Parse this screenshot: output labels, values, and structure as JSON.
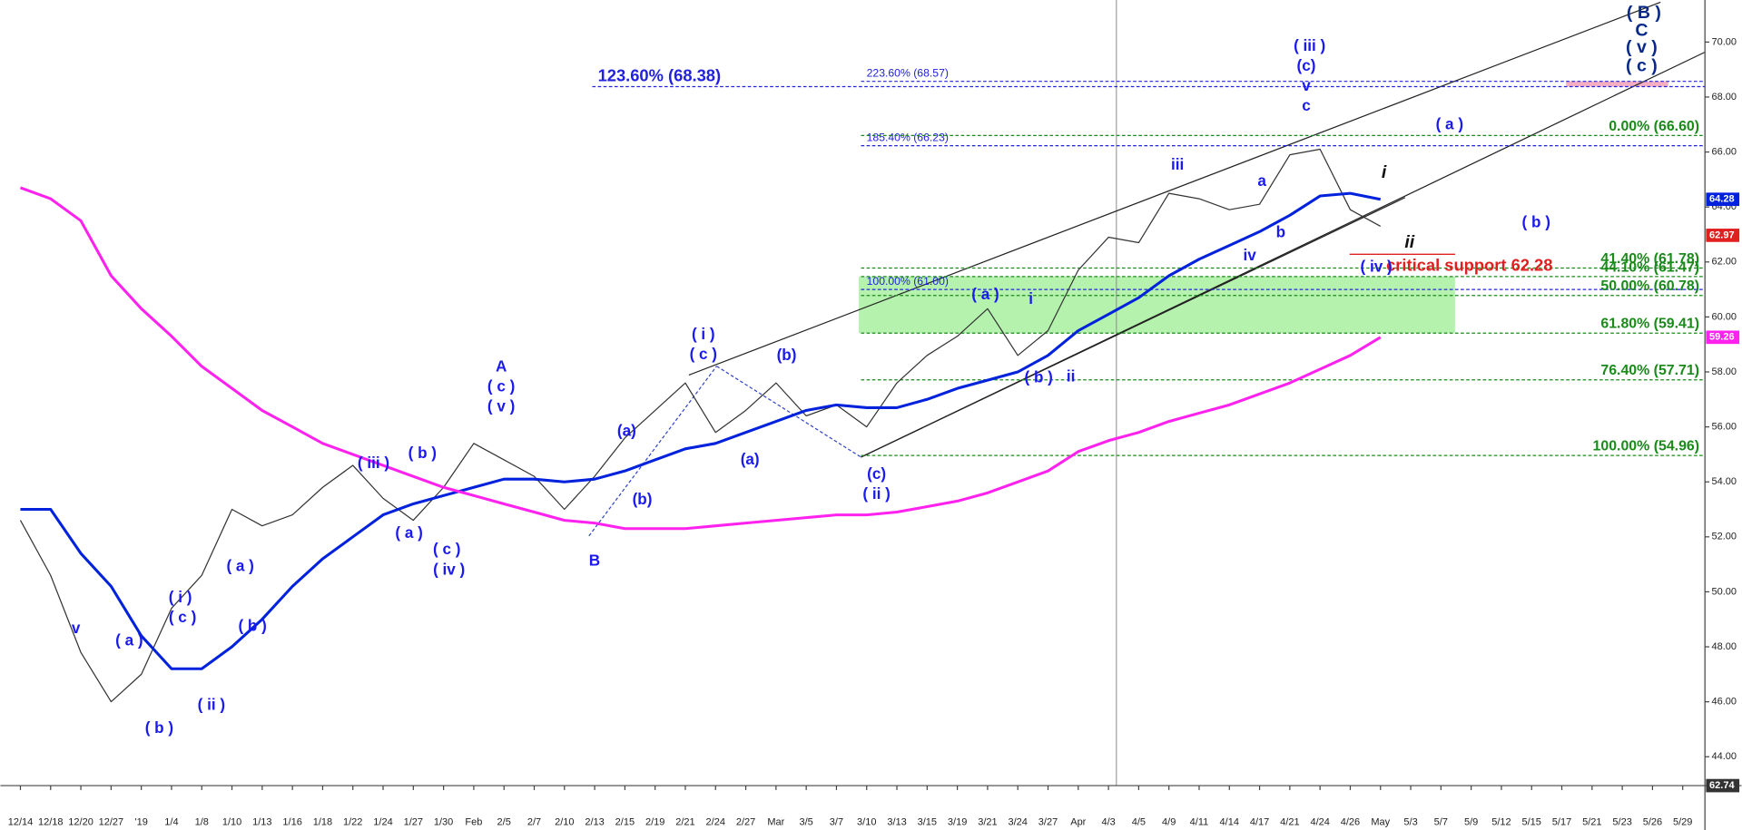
{
  "chart_data": {
    "type": "line",
    "categories": [
      "12/14",
      "12/18",
      "12/20",
      "12/27",
      "'19",
      "1/4",
      "1/8",
      "1/10",
      "1/13",
      "1/16",
      "1/18",
      "1/22",
      "1/24",
      "1/27",
      "1/30",
      "Feb",
      "2/5",
      "2/7",
      "2/10",
      "2/13",
      "2/15",
      "2/19",
      "2/21",
      "2/24",
      "2/27",
      "Mar",
      "3/5",
      "3/7",
      "3/10",
      "3/13",
      "3/15",
      "3/19",
      "3/21",
      "3/24",
      "3/27",
      "Apr",
      "4/3",
      "4/5",
      "4/9",
      "4/11",
      "4/14",
      "4/17",
      "4/21",
      "4/24",
      "4/26",
      "May",
      "5/3",
      "5/7",
      "5/9",
      "5/12",
      "5/15",
      "5/17",
      "5/21",
      "5/23",
      "5/26",
      "5/29"
    ],
    "series": [
      {
        "color": "#333333",
        "values": [
          52.6,
          50.6,
          47.8,
          46.0,
          47.0,
          49.4,
          50.6,
          53.0,
          52.4,
          52.8,
          53.8,
          54.6,
          53.4,
          52.6,
          53.8,
          55.4,
          54.8,
          54.2,
          53.0,
          54.2,
          55.6,
          56.6,
          57.6,
          55.8,
          56.6,
          57.6,
          56.4,
          56.8,
          56.0,
          57.6,
          58.6,
          59.3,
          60.3,
          58.6,
          59.5,
          61.7,
          62.9,
          62.7,
          64.5,
          64.3,
          63.9,
          64.1,
          65.9,
          66.1,
          63.9,
          63.3,
          null,
          null,
          null,
          null,
          null,
          null,
          null,
          null,
          null,
          null
        ]
      },
      {
        "color": "#0022dd",
        "values": [
          53.0,
          53.0,
          51.4,
          50.2,
          48.4,
          47.2,
          47.2,
          48.0,
          49.0,
          50.2,
          51.2,
          52.0,
          52.8,
          53.2,
          53.5,
          53.8,
          54.1,
          54.1,
          54.0,
          54.1,
          54.4,
          54.8,
          55.2,
          55.4,
          55.8,
          56.2,
          56.6,
          56.8,
          56.7,
          56.7,
          57.0,
          57.4,
          57.7,
          58.0,
          58.6,
          59.5,
          60.1,
          60.7,
          61.5,
          62.1,
          62.6,
          63.1,
          63.7,
          64.4,
          64.5,
          64.28,
          null,
          null,
          null,
          null,
          null,
          null,
          null,
          null,
          null,
          null
        ]
      },
      {
        "color": "#ff22ee",
        "values": [
          64.7,
          64.3,
          63.5,
          61.5,
          60.3,
          59.3,
          58.2,
          57.4,
          56.6,
          56.0,
          55.4,
          55.0,
          54.6,
          54.2,
          53.8,
          53.5,
          53.2,
          52.9,
          52.6,
          52.5,
          52.3,
          52.3,
          52.3,
          52.4,
          52.5,
          52.6,
          52.7,
          52.8,
          52.8,
          52.9,
          53.1,
          53.3,
          53.6,
          54.0,
          54.4,
          55.1,
          55.5,
          55.8,
          56.2,
          56.5,
          56.8,
          57.2,
          57.6,
          58.1,
          58.6,
          59.26,
          null,
          null,
          null,
          null,
          null,
          null,
          null,
          null,
          null,
          null
        ]
      }
    ],
    "ylim": [
      42.95,
      71.53
    ],
    "yticks": [
      {
        "value": 44,
        "label": "44.00"
      },
      {
        "value": 46,
        "label": "46.00"
      },
      {
        "value": 48,
        "label": "48.00"
      },
      {
        "value": 50,
        "label": "50.00"
      },
      {
        "value": 52,
        "label": "52.00"
      },
      {
        "value": 54,
        "label": "54.00"
      },
      {
        "value": 56,
        "label": "56.00"
      },
      {
        "value": 58,
        "label": "58.00"
      },
      {
        "value": 60,
        "label": "60.00"
      },
      {
        "value": 62,
        "label": "62.00"
      },
      {
        "value": 64,
        "label": "64.00"
      },
      {
        "value": 66,
        "label": "66.00"
      },
      {
        "value": 68,
        "label": "68.00"
      },
      {
        "value": 70,
        "label": "70.00"
      }
    ],
    "levels": [
      {
        "label": "123.60% (68.38)",
        "value": 68.38,
        "color": "#2222dd"
      },
      {
        "label": "223.60% (68.57)",
        "value": 68.57,
        "color": "#2222dd"
      },
      {
        "label": "185.40% (66.23)",
        "value": 66.23,
        "color": "#2222dd"
      },
      {
        "label": "100.00% (61.00)",
        "value": 61.0,
        "color": "#2222dd"
      },
      {
        "label": "0.00% (66.60)",
        "value": 66.6,
        "color": "#1a8a1a"
      },
      {
        "label": "41.40% (61.78)",
        "value": 61.78,
        "color": "#1a8a1a"
      },
      {
        "label": "44.10% (61.47)",
        "value": 61.47,
        "color": "#1a8a1a"
      },
      {
        "label": "50.00% (60.78)",
        "value": 60.78,
        "color": "#1a8a1a"
      },
      {
        "label": "61.80% (59.41)",
        "value": 59.41,
        "color": "#1a8a1a"
      },
      {
        "label": "76.40% (57.71)",
        "value": 57.71,
        "color": "#1a8a1a"
      },
      {
        "label": "100.00% (54.96)",
        "value": 54.96,
        "color": "#1a8a1a"
      }
    ],
    "zones": [
      {
        "low": 59.41,
        "high": 61.47,
        "color": "#a8f0a0"
      },
      {
        "low": 68.38,
        "high": 68.57,
        "color": "#f4a0b8"
      }
    ],
    "support": {
      "label": "critical support 62.28",
      "value": 62.28,
      "color": "#e02020"
    },
    "price_tags": [
      {
        "value": 64.28,
        "color": "#0022dd"
      },
      {
        "value": 62.97,
        "color": "#e02020"
      },
      {
        "value": 59.26,
        "color": "#ff22ee"
      }
    ],
    "cursor_value": 62.74,
    "wave_labels": [
      "v",
      "( a )",
      "( b )",
      "( i )",
      "( c )",
      "( ii )",
      "( a )",
      "( b )",
      "( iii )",
      "( a )",
      "( b )",
      "( c )",
      "( iv )",
      "A",
      "( c )",
      "( v )",
      "B",
      "(a)",
      "(b)",
      "( i )",
      "( c )",
      "(a)",
      "(b)",
      "(c)",
      "( ii )",
      "( a )",
      "i",
      "( b )",
      "ii",
      "iii",
      "a",
      "iv",
      "b",
      "( iii )",
      "(c)",
      "v",
      "c",
      "( iv )",
      "i",
      "ii",
      "( a )",
      "( b )",
      "( B )",
      "C",
      "( v )",
      "( c )"
    ]
  }
}
